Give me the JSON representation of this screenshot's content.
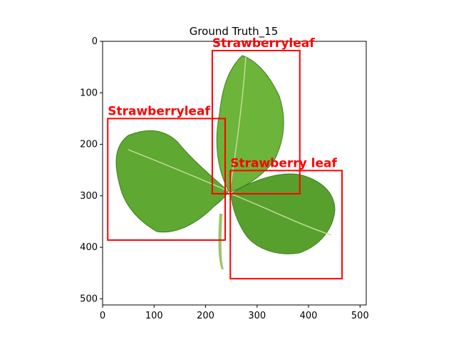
{
  "figure": {
    "title": "Ground Truth_15"
  },
  "axes": {
    "x_ticks": [
      "0",
      "100",
      "200",
      "300",
      "400",
      "500"
    ],
    "y_ticks": [
      "0",
      "100",
      "200",
      "300",
      "400",
      "500"
    ],
    "xlim": [
      0,
      512
    ],
    "ylim": [
      512,
      0
    ]
  },
  "image": {
    "subject": "strawberry leaf with three leaflets on white background",
    "leaf_color": "#5fa832",
    "leaf_dark": "#3f7f1f",
    "stem_color": "#9cc46a"
  },
  "annotations": {
    "box_color": "#ff0000",
    "boxes": [
      {
        "label": "Strawberryleaf",
        "x0": 213,
        "y0": 18,
        "x1": 383,
        "y1": 296
      },
      {
        "label": "Strawberryleaf",
        "x0": 10,
        "y0": 150,
        "x1": 238,
        "y1": 386
      },
      {
        "label": "Strawberry leaf",
        "x0": 248,
        "y0": 251,
        "x1": 465,
        "y1": 461
      }
    ]
  }
}
